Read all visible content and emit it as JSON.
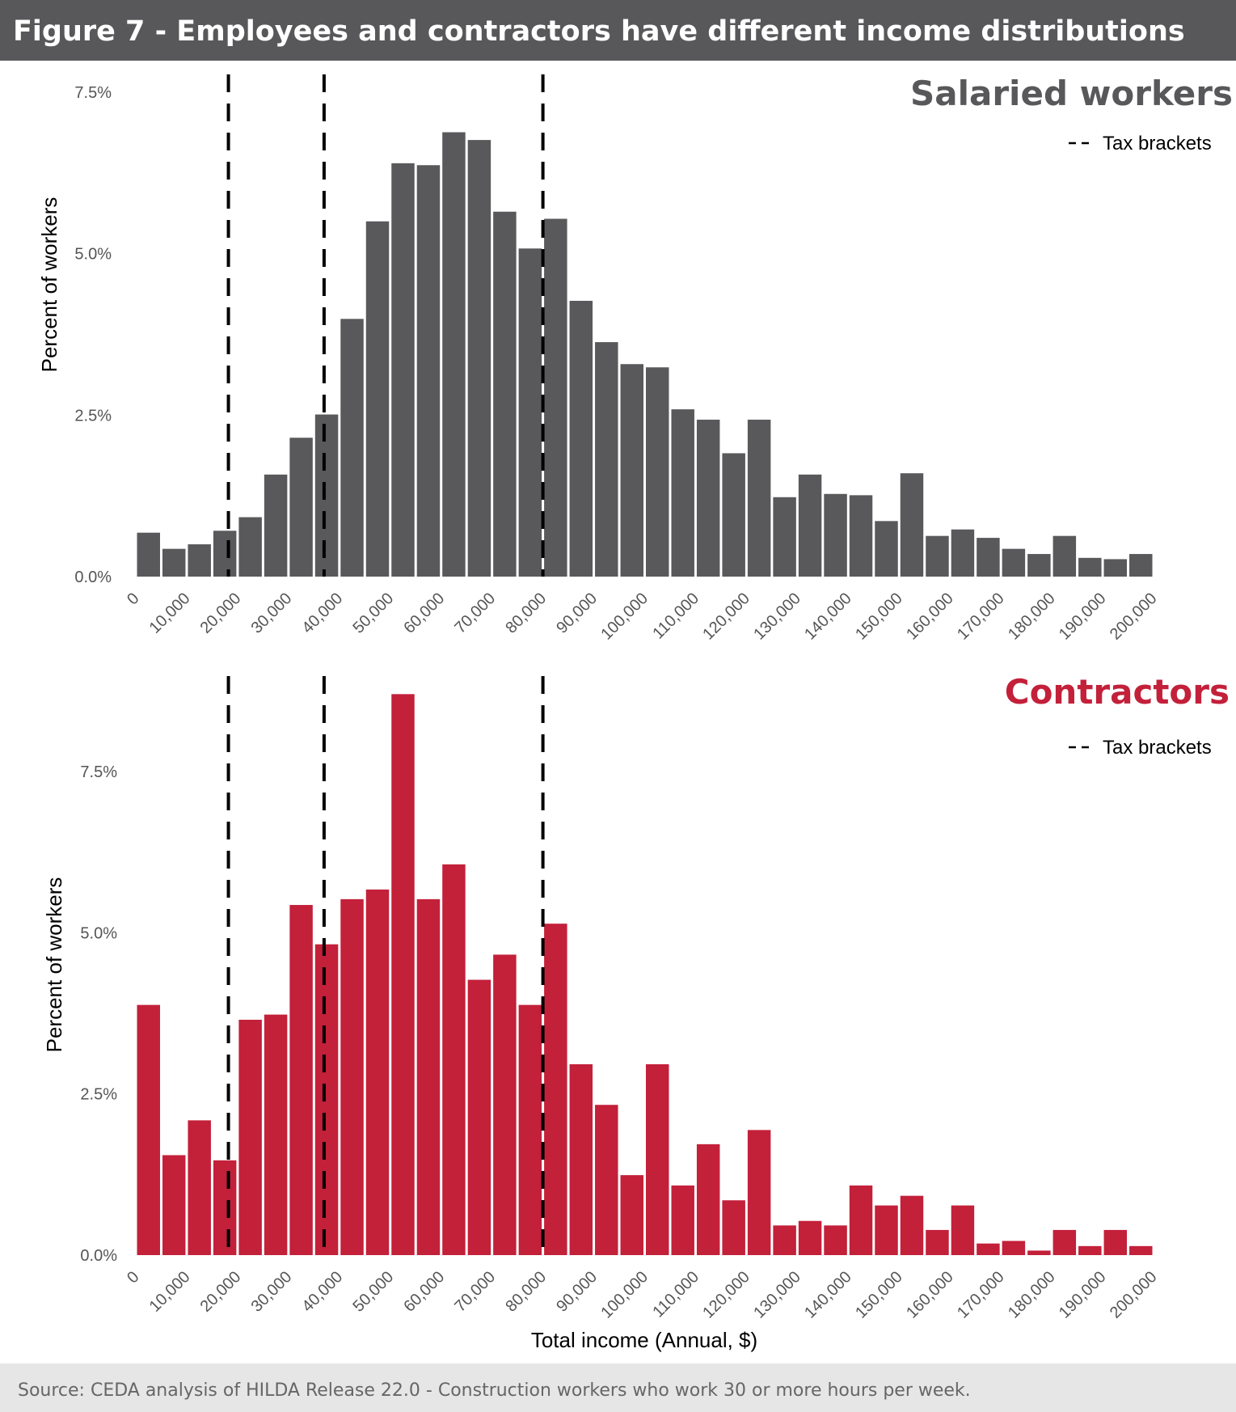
{
  "header": {
    "title": "Figure 7 - Employees and contractors have different income distributions",
    "background": "#58585a"
  },
  "footer": {
    "source": "Source: CEDA analysis of HILDA Release 22.0 - Construction workers who work 30 or more hours per week.",
    "background": "#e6e6e6"
  },
  "chart_data": [
    {
      "type": "bar",
      "title": "Salaried workers",
      "title_color": "#58585a",
      "bar_color": "#59595b",
      "ylabel": "Percent of workers",
      "xlabel": "",
      "bin_width": 5000,
      "xlim": [
        0,
        200000
      ],
      "ylim": [
        0,
        7.5
      ],
      "yticks": [
        0,
        2.5,
        5.0,
        7.5
      ],
      "ytick_labels": [
        "0.0%",
        "2.5%",
        "5.0%",
        "7.5%"
      ],
      "xticks": [
        0,
        10000,
        20000,
        30000,
        40000,
        50000,
        60000,
        70000,
        80000,
        90000,
        100000,
        110000,
        120000,
        130000,
        140000,
        150000,
        160000,
        170000,
        180000,
        190000,
        200000
      ],
      "xtick_labels": [
        "0",
        "10,000",
        "20,000",
        "30,000",
        "40,000",
        "50,000",
        "60,000",
        "70,000",
        "80,000",
        "90,000",
        "100,000",
        "110,000",
        "120,000",
        "130,000",
        "140,000",
        "150,000",
        "160,000",
        "170,000",
        "180,000",
        "190,000",
        "200,000"
      ],
      "values": [
        0.68,
        0.43,
        0.5,
        0.71,
        0.92,
        1.58,
        2.15,
        2.51,
        3.99,
        5.5,
        6.4,
        6.37,
        6.88,
        6.76,
        5.65,
        5.08,
        5.54,
        4.27,
        3.63,
        3.29,
        3.24,
        2.59,
        2.43,
        1.91,
        2.43,
        1.23,
        1.58,
        1.28,
        1.26,
        0.86,
        1.6,
        0.63,
        0.73,
        0.6,
        0.43,
        0.35,
        0.63,
        0.29,
        0.27,
        0.35
      ],
      "reference_lines": {
        "label": "Tax brackets",
        "style": "dashed",
        "x": [
          18200,
          37000,
          80000
        ]
      },
      "legend": "top-right",
      "grid": false
    },
    {
      "type": "bar",
      "title": "Contractors",
      "title_color": "#c3203a",
      "bar_color": "#c3203a",
      "ylabel": "Percent of workers",
      "xlabel": "Total income (Annual, $)",
      "bin_width": 5000,
      "xlim": [
        0,
        200000
      ],
      "ylim": [
        0,
        8.9
      ],
      "yticks": [
        0,
        2.5,
        5.0,
        7.5
      ],
      "ytick_labels": [
        "0.0%",
        "2.5%",
        "5.0%",
        "7.5%"
      ],
      "xticks": [
        0,
        10000,
        20000,
        30000,
        40000,
        50000,
        60000,
        70000,
        80000,
        90000,
        100000,
        110000,
        120000,
        130000,
        140000,
        150000,
        160000,
        170000,
        180000,
        190000,
        200000
      ],
      "xtick_labels": [
        "0",
        "10,000",
        "20,000",
        "30,000",
        "40,000",
        "50,000",
        "60,000",
        "70,000",
        "80,000",
        "90,000",
        "100,000",
        "110,000",
        "120,000",
        "130,000",
        "140,000",
        "150,000",
        "160,000",
        "170,000",
        "180,000",
        "190,000",
        "200,000"
      ],
      "values": [
        3.88,
        1.55,
        2.09,
        1.47,
        3.65,
        3.73,
        5.43,
        4.82,
        5.52,
        5.67,
        8.7,
        5.52,
        6.06,
        4.27,
        4.66,
        3.88,
        5.14,
        2.96,
        2.33,
        1.24,
        2.96,
        1.08,
        1.72,
        0.85,
        1.94,
        0.46,
        0.53,
        0.46,
        1.08,
        0.77,
        0.92,
        0.39,
        0.77,
        0.18,
        0.22,
        0.07,
        0.39,
        0.14,
        0.39,
        0.14
      ],
      "reference_lines": {
        "label": "Tax brackets",
        "style": "dashed",
        "x": [
          18200,
          37000,
          80000
        ]
      },
      "legend": "top-right",
      "grid": false
    }
  ]
}
